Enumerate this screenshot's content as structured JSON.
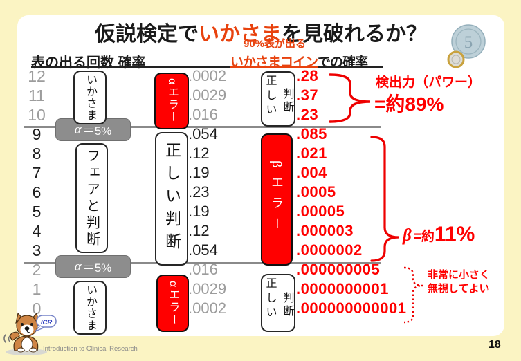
{
  "slide": {
    "title_pre": "仮説検定で",
    "title_highlight": "いかさま",
    "title_post": "を見破れるか？"
  },
  "header": {
    "col_left": "表の出る回数 確率",
    "note": "90%表が出る",
    "fake_coin": "いかさまコイン",
    "fake_rest": "での確率"
  },
  "rows": [
    {
      "count": "12",
      "p": ".0002",
      "q": ".28",
      "dim": true
    },
    {
      "count": "11",
      "p": ".0029",
      "q": ".37",
      "dim": true
    },
    {
      "count": "10",
      "p": ".016",
      "q": ".23",
      "dim": true
    },
    {
      "count": "9",
      "p": ".054",
      "q": ".085",
      "dim": false
    },
    {
      "count": "8",
      "p": ".12",
      "q": ".021",
      "dim": false
    },
    {
      "count": "7",
      "p": ".19",
      "q": ".004",
      "dim": false
    },
    {
      "count": "6",
      "p": ".23",
      "q": ".0005",
      "dim": false
    },
    {
      "count": "5",
      "p": ".19",
      "q": ".00005",
      "dim": false
    },
    {
      "count": "4",
      "p": ".12",
      "q": ".000003",
      "dim": false
    },
    {
      "count": "3",
      "p": ".054",
      "q": ".0000002",
      "dim": false
    },
    {
      "count": "2",
      "p": ".016",
      "q": ".000000005",
      "dim": true
    },
    {
      "count": "1",
      "p": ".0029",
      "q": ".0000000001",
      "dim": true
    },
    {
      "count": "0",
      "p": ".0002",
      "q": ".000000000001",
      "dim": true
    }
  ],
  "labels": {
    "ikasama_top": "いかさま",
    "fair_judge": "フェアと判断",
    "ikasama_bottom": "いかさま",
    "alpha_error_top": "αエラー",
    "correct_tall": "正しい判断",
    "alpha_error_bottom": "αエラー",
    "correct_top_1": "正しい",
    "correct_top_2": "判断",
    "beta_error": "βエラー",
    "correct_bottom_1": "正しい",
    "correct_bottom_2": "判断",
    "alpha_sym": "α",
    "alpha_rest": "＝5%"
  },
  "annotations": {
    "power_title": "検出力（パワー）",
    "power_value": "=約89%",
    "beta_sym": "β",
    "beta_eq": "=約",
    "beta_value": "11%",
    "tiny_note_1": "非常に小さく",
    "tiny_note_2": "無視してよい"
  },
  "mascot": {
    "bubble": "ICR"
  },
  "coin": {
    "value": "5"
  },
  "footer": {
    "text": "Introduction to Clinical Research",
    "page": "18"
  },
  "colors": {
    "accent_red": "#ff0000",
    "highlight_orange": "#e8420e",
    "dim_gray": "#9c9c9c",
    "box_gray": "#8d8d8d",
    "background": "#fbf4c3"
  }
}
